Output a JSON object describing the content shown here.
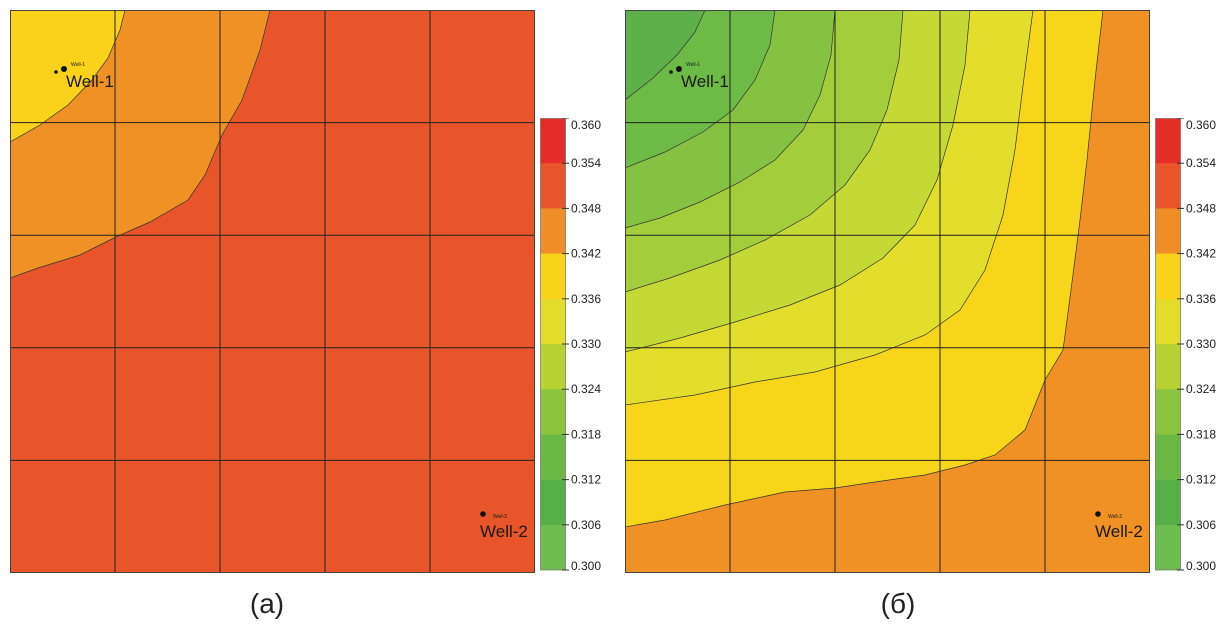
{
  "chart_data": [
    {
      "type": "heatmap",
      "panel_label": "(a)",
      "colorbar": {
        "ticks": [
          "0.360",
          "0.354",
          "0.348",
          "0.342",
          "0.336",
          "0.330",
          "0.324",
          "0.318",
          "0.312",
          "0.306",
          "0.300"
        ],
        "colors": [
          "#e52d27",
          "#e8552a",
          "#ef8d27",
          "#f9d319",
          "#e3dc2a",
          "#b8d233",
          "#8cc43d",
          "#6ab744",
          "#56af47",
          "#6fbc4e"
        ]
      },
      "wells": [
        {
          "name": "Well-1",
          "tiny": "Well-1"
        },
        {
          "name": "Well-2",
          "tiny": "Well-2"
        }
      ],
      "zone_colors": [
        "#fad21c",
        "#f09126",
        "#e8552a"
      ]
    },
    {
      "type": "heatmap",
      "panel_label": "(б)",
      "colorbar": {
        "ticks": [
          "0.360",
          "0.354",
          "0.348",
          "0.342",
          "0.336",
          "0.330",
          "0.324",
          "0.318",
          "0.312",
          "0.306",
          "0.300"
        ],
        "colors": [
          "#e52d27",
          "#e8552a",
          "#ef8d27",
          "#f9d319",
          "#e3dc2a",
          "#b8d233",
          "#8cc43d",
          "#6ab744",
          "#56af47",
          "#6fbc4e"
        ]
      },
      "wells": [
        {
          "name": "Well-1",
          "tiny": "Well-1"
        },
        {
          "name": "Well-2",
          "tiny": "Well-2"
        }
      ],
      "zone_colors": [
        "#5eb04a",
        "#6eba47",
        "#85c242",
        "#a3cd3b",
        "#c4d935",
        "#e2de2b",
        "#f7d51b",
        "#f09126"
      ]
    }
  ]
}
